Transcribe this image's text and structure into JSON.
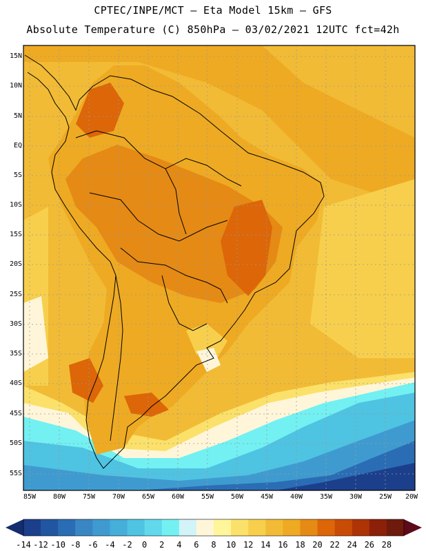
{
  "header": {
    "title_line1": "CPTEC/INPE/MCT –  Eta Model 15km – GFS",
    "title_line2": "Absolute Temperature (C) 850hPa – 03/02/2021 12UTC fct=42h"
  },
  "axes": {
    "lat_labels": [
      "15N",
      "10N",
      "5N",
      "EQ",
      "5S",
      "10S",
      "15S",
      "20S",
      "25S",
      "30S",
      "35S",
      "40S",
      "45S",
      "50S",
      "55S"
    ],
    "lon_labels": [
      "85W",
      "80W",
      "75W",
      "70W",
      "65W",
      "60W",
      "55W",
      "50W",
      "45W",
      "40W",
      "35W",
      "30W",
      "25W",
      "20W"
    ]
  },
  "colorbar": {
    "labels": [
      "-14",
      "-12",
      "-10",
      "-8",
      "-6",
      "-4",
      "-2",
      "0",
      "2",
      "4",
      "6",
      "8",
      "10",
      "12",
      "14",
      "16",
      "18",
      "20",
      "22",
      "24",
      "26",
      "28"
    ],
    "colors": [
      "#1c3f8c",
      "#2356a0",
      "#2b6db4",
      "#3a86c4",
      "#3f9bcf",
      "#45aed9",
      "#4fc3e2",
      "#62d8ec",
      "#73f0f2",
      "#d2f3f7",
      "#fff6da",
      "#fff59b",
      "#fbe16a",
      "#f7cf4c",
      "#f2bb35",
      "#eeaa22",
      "#e58a14",
      "#dc6608",
      "#c94c06",
      "#ae3408",
      "#8c2009",
      "#6e1a0d"
    ],
    "low_arrow_color": "#142d6e",
    "high_arrow_color": "#5c0b1a"
  }
}
